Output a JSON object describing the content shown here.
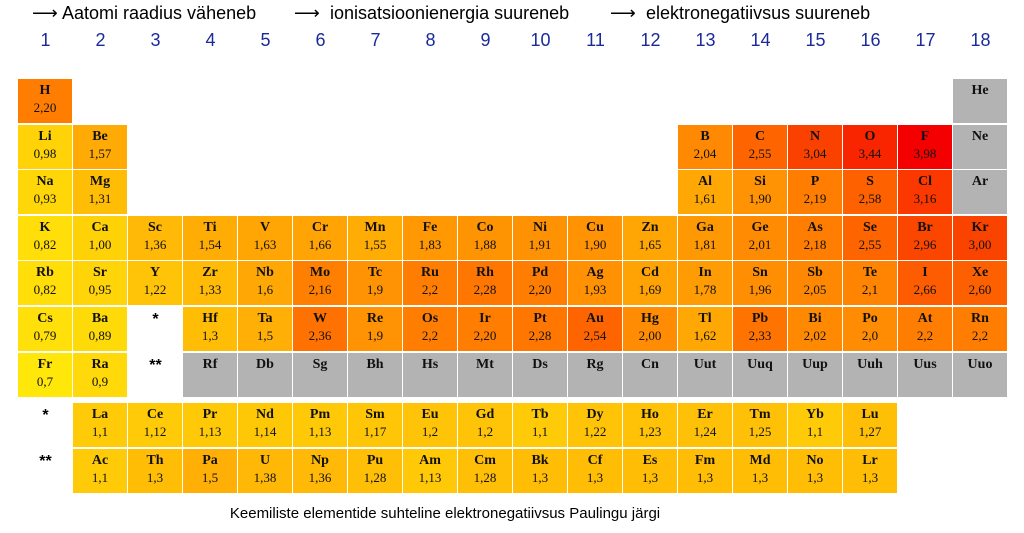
{
  "header": {
    "trends": [
      "Aatomi raadius väheneb",
      "ionisatsioonienergia suureneb",
      "elektronegatiivsus suureneb"
    ]
  },
  "groups": [
    "1",
    "2",
    "3",
    "4",
    "5",
    "6",
    "7",
    "8",
    "9",
    "10",
    "11",
    "12",
    "13",
    "14",
    "15",
    "16",
    "17",
    "18"
  ],
  "rows": [
    [
      {
        "symbol": "H",
        "value": "2,20"
      },
      null,
      null,
      null,
      null,
      null,
      null,
      null,
      null,
      null,
      null,
      null,
      null,
      null,
      null,
      null,
      null,
      {
        "symbol": "He"
      }
    ],
    [
      {
        "symbol": "Li",
        "value": "0,98"
      },
      {
        "symbol": "Be",
        "value": "1,57"
      },
      null,
      null,
      null,
      null,
      null,
      null,
      null,
      null,
      null,
      null,
      {
        "symbol": "B",
        "value": "2,04"
      },
      {
        "symbol": "C",
        "value": "2,55"
      },
      {
        "symbol": "N",
        "value": "3,04"
      },
      {
        "symbol": "O",
        "value": "3,44"
      },
      {
        "symbol": "F",
        "value": "3,98"
      },
      {
        "symbol": "Ne"
      }
    ],
    [
      {
        "symbol": "Na",
        "value": "0,93"
      },
      {
        "symbol": "Mg",
        "value": "1,31"
      },
      null,
      null,
      null,
      null,
      null,
      null,
      null,
      null,
      null,
      null,
      {
        "symbol": "Al",
        "value": "1,61"
      },
      {
        "symbol": "Si",
        "value": "1,90"
      },
      {
        "symbol": "P",
        "value": "2,19"
      },
      {
        "symbol": "S",
        "value": "2,58"
      },
      {
        "symbol": "Cl",
        "value": "3,16"
      },
      {
        "symbol": "Ar"
      }
    ],
    [
      {
        "symbol": "K",
        "value": "0,82"
      },
      {
        "symbol": "Ca",
        "value": "1,00"
      },
      {
        "symbol": "Sc",
        "value": "1,36"
      },
      {
        "symbol": "Ti",
        "value": "1,54"
      },
      {
        "symbol": "V",
        "value": "1,63"
      },
      {
        "symbol": "Cr",
        "value": "1,66"
      },
      {
        "symbol": "Mn",
        "value": "1,55"
      },
      {
        "symbol": "Fe",
        "value": "1,83"
      },
      {
        "symbol": "Co",
        "value": "1,88"
      },
      {
        "symbol": "Ni",
        "value": "1,91"
      },
      {
        "symbol": "Cu",
        "value": "1,90"
      },
      {
        "symbol": "Zn",
        "value": "1,65"
      },
      {
        "symbol": "Ga",
        "value": "1,81"
      },
      {
        "symbol": "Ge",
        "value": "2,01"
      },
      {
        "symbol": "As",
        "value": "2,18"
      },
      {
        "symbol": "Se",
        "value": "2,55"
      },
      {
        "symbol": "Br",
        "value": "2,96"
      },
      {
        "symbol": "Kr",
        "value": "3,00"
      }
    ],
    [
      {
        "symbol": "Rb",
        "value": "0,82"
      },
      {
        "symbol": "Sr",
        "value": "0,95"
      },
      {
        "symbol": "Y",
        "value": "1,22"
      },
      {
        "symbol": "Zr",
        "value": "1,33"
      },
      {
        "symbol": "Nb",
        "value": "1,6"
      },
      {
        "symbol": "Mo",
        "value": "2,16"
      },
      {
        "symbol": "Tc",
        "value": "1,9"
      },
      {
        "symbol": "Ru",
        "value": "2,2"
      },
      {
        "symbol": "Rh",
        "value": "2,28"
      },
      {
        "symbol": "Pd",
        "value": "2,20"
      },
      {
        "symbol": "Ag",
        "value": "1,93"
      },
      {
        "symbol": "Cd",
        "value": "1,69"
      },
      {
        "symbol": "In",
        "value": "1,78"
      },
      {
        "symbol": "Sn",
        "value": "1,96"
      },
      {
        "symbol": "Sb",
        "value": "2,05"
      },
      {
        "symbol": "Te",
        "value": "2,1"
      },
      {
        "symbol": "I",
        "value": "2,66"
      },
      {
        "symbol": "Xe",
        "value": "2,60"
      }
    ],
    [
      {
        "symbol": "Cs",
        "value": "0,79"
      },
      {
        "symbol": "Ba",
        "value": "0,89"
      },
      {
        "note": "*"
      },
      {
        "symbol": "Hf",
        "value": "1,3"
      },
      {
        "symbol": "Ta",
        "value": "1,5"
      },
      {
        "symbol": "W",
        "value": "2,36"
      },
      {
        "symbol": "Re",
        "value": "1,9"
      },
      {
        "symbol": "Os",
        "value": "2,2"
      },
      {
        "symbol": "Ir",
        "value": "2,20"
      },
      {
        "symbol": "Pt",
        "value": "2,28"
      },
      {
        "symbol": "Au",
        "value": "2,54"
      },
      {
        "symbol": "Hg",
        "value": "2,00"
      },
      {
        "symbol": "Tl",
        "value": "1,62"
      },
      {
        "symbol": "Pb",
        "value": "2,33"
      },
      {
        "symbol": "Bi",
        "value": "2,02"
      },
      {
        "symbol": "Po",
        "value": "2,0"
      },
      {
        "symbol": "At",
        "value": "2,2"
      },
      {
        "symbol": "Rn",
        "value": "2,2"
      }
    ],
    [
      {
        "symbol": "Fr",
        "value": "0,7"
      },
      {
        "symbol": "Ra",
        "value": "0,9"
      },
      {
        "note": "**"
      },
      {
        "symbol": "Rf"
      },
      {
        "symbol": "Db"
      },
      {
        "symbol": "Sg"
      },
      {
        "symbol": "Bh"
      },
      {
        "symbol": "Hs"
      },
      {
        "symbol": "Mt"
      },
      {
        "symbol": "Ds"
      },
      {
        "symbol": "Rg"
      },
      {
        "symbol": "Cn"
      },
      {
        "symbol": "Uut"
      },
      {
        "symbol": "Uuq"
      },
      {
        "symbol": "Uup"
      },
      {
        "symbol": "Uuh"
      },
      {
        "symbol": "Uus"
      },
      {
        "symbol": "Uuo"
      }
    ]
  ],
  "f_block": [
    {
      "marker": "*",
      "cells": [
        {
          "symbol": "La",
          "value": "1,1"
        },
        {
          "symbol": "Ce",
          "value": "1,12"
        },
        {
          "symbol": "Pr",
          "value": "1,13"
        },
        {
          "symbol": "Nd",
          "value": "1,14"
        },
        {
          "symbol": "Pm",
          "value": "1,13"
        },
        {
          "symbol": "Sm",
          "value": "1,17"
        },
        {
          "symbol": "Eu",
          "value": "1,2"
        },
        {
          "symbol": "Gd",
          "value": "1,2"
        },
        {
          "symbol": "Tb",
          "value": "1,1"
        },
        {
          "symbol": "Dy",
          "value": "1,22"
        },
        {
          "symbol": "Ho",
          "value": "1,23"
        },
        {
          "symbol": "Er",
          "value": "1,24"
        },
        {
          "symbol": "Tm",
          "value": "1,25"
        },
        {
          "symbol": "Yb",
          "value": "1,1"
        },
        {
          "symbol": "Lu",
          "value": "1,27"
        }
      ]
    },
    {
      "marker": "**",
      "cells": [
        {
          "symbol": "Ac",
          "value": "1,1"
        },
        {
          "symbol": "Th",
          "value": "1,3"
        },
        {
          "symbol": "Pa",
          "value": "1,5"
        },
        {
          "symbol": "U",
          "value": "1,38"
        },
        {
          "symbol": "Np",
          "value": "1,36"
        },
        {
          "symbol": "Pu",
          "value": "1,28"
        },
        {
          "symbol": "Am",
          "value": "1,13"
        },
        {
          "symbol": "Cm",
          "value": "1,28"
        },
        {
          "symbol": "Bk",
          "value": "1,3"
        },
        {
          "symbol": "Cf",
          "value": "1,3"
        },
        {
          "symbol": "Es",
          "value": "1,3"
        },
        {
          "symbol": "Fm",
          "value": "1,3"
        },
        {
          "symbol": "Md",
          "value": "1,3"
        },
        {
          "symbol": "No",
          "value": "1,3"
        },
        {
          "symbol": "Lr",
          "value": "1,3"
        }
      ]
    }
  ],
  "caption": "Keemiliste elementide suhteline elektronegatiivsus Paulingu järgi"
}
